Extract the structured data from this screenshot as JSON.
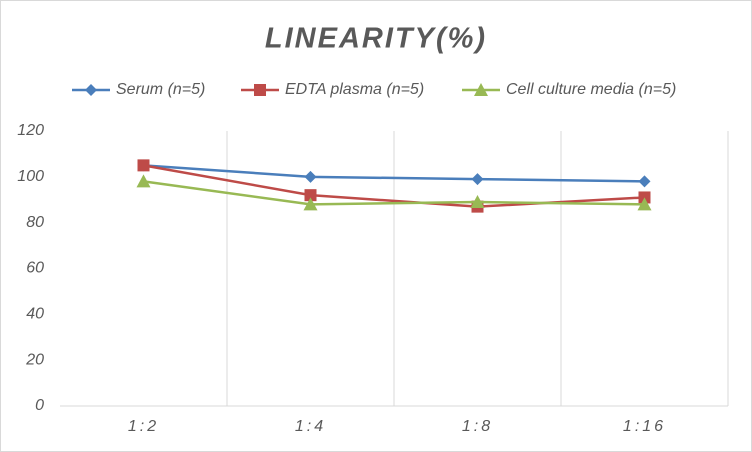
{
  "chart_data": {
    "type": "line",
    "title": "LINEARITY(%)",
    "categories": [
      "1:2",
      "1:4",
      "1:8",
      "1:16"
    ],
    "series": [
      {
        "name": "Serum (n=5)",
        "color": "#4a7ebb",
        "marker": "diamond",
        "values": [
          105,
          100,
          99,
          98
        ]
      },
      {
        "name": "EDTA plasma (n=5)",
        "color": "#be4b48",
        "marker": "square",
        "values": [
          105,
          92,
          87,
          91
        ]
      },
      {
        "name": "Cell culture media (n=5)",
        "color": "#98b954",
        "marker": "triangle",
        "values": [
          98,
          88,
          89,
          88
        ]
      }
    ],
    "ylim": [
      0,
      120
    ],
    "yticks": [
      0,
      20,
      40,
      60,
      80,
      100,
      120
    ],
    "grid": "vertical",
    "legend": "top"
  }
}
